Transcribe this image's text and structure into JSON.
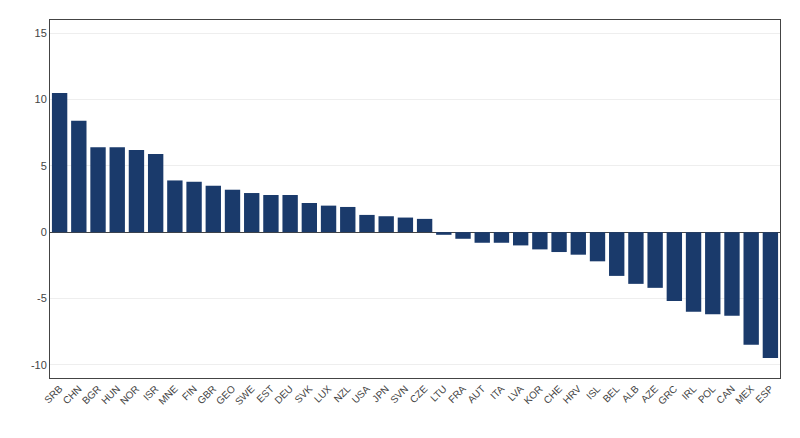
{
  "chart_data": {
    "type": "bar",
    "categories": [
      "SRB",
      "CHN",
      "BGR",
      "HUN",
      "NOR",
      "ISR",
      "MNE",
      "FIN",
      "GBR",
      "GEO",
      "SWE",
      "EST",
      "DEU",
      "SVK",
      "LUX",
      "NZL",
      "USA",
      "JPN",
      "SVN",
      "CZE",
      "LTU",
      "FRA",
      "AUT",
      "ITA",
      "LVA",
      "KOR",
      "CHE",
      "HRV",
      "ISL",
      "BEL",
      "ALB",
      "AZE",
      "GRC",
      "IRL",
      "POL",
      "CAN",
      "MEX",
      "ESP"
    ],
    "values": [
      10.5,
      8.4,
      6.4,
      6.4,
      6.2,
      5.9,
      3.9,
      3.8,
      3.5,
      3.2,
      2.95,
      2.8,
      2.8,
      2.2,
      2.0,
      1.9,
      1.3,
      1.2,
      1.1,
      1.0,
      -0.2,
      -0.5,
      -0.8,
      -0.8,
      -1.0,
      -1.3,
      -1.5,
      -1.7,
      -2.2,
      -3.3,
      -3.9,
      -4.2,
      -5.2,
      -6.0,
      -6.2,
      -6.3,
      -8.5,
      -9.5
    ],
    "color": "#1a3a6b",
    "ylim": [
      -11,
      16
    ],
    "yticks": [
      -10,
      -5,
      0,
      5,
      10,
      15
    ],
    "grid": true
  }
}
